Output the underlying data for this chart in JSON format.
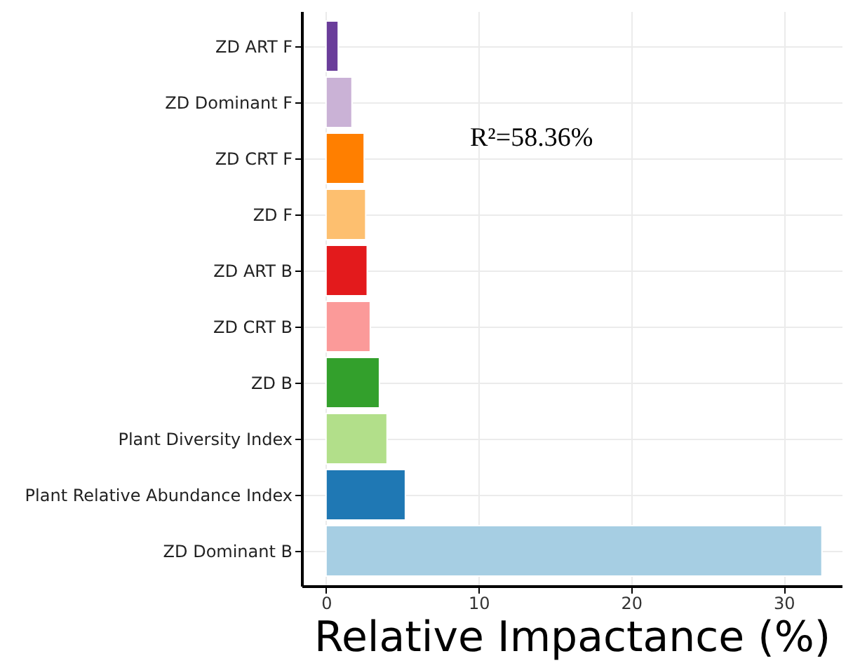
{
  "chart_data": {
    "type": "bar",
    "orientation": "horizontal",
    "xlabel": "Relative Impactance (%)",
    "categories": [
      "ZD  ART  F",
      "ZD  Dominant  F",
      "ZD  CRT  F",
      "ZD  F",
      "ZD  ART  B",
      "ZD  CRT  B",
      "ZD  B",
      "Plant  Diversity  Index",
      "Plant  Relative  Abundance  Index",
      "ZD  Dominant  B"
    ],
    "values": [
      0.8,
      1.7,
      2.5,
      2.6,
      2.7,
      2.9,
      3.5,
      4.0,
      5.2,
      32.5
    ],
    "colors": [
      "#6a3d9a",
      "#cab2d6",
      "#ff7f00",
      "#fdbf6f",
      "#e31a1c",
      "#fb9a99",
      "#33a02c",
      "#b2df8a",
      "#1f78b4",
      "#a6cee3"
    ],
    "xlim": [
      -1.6,
      33.8
    ],
    "xticks": [
      0,
      10,
      20,
      30
    ],
    "grid": true,
    "annotations": [
      "R²=58.36%"
    ]
  }
}
